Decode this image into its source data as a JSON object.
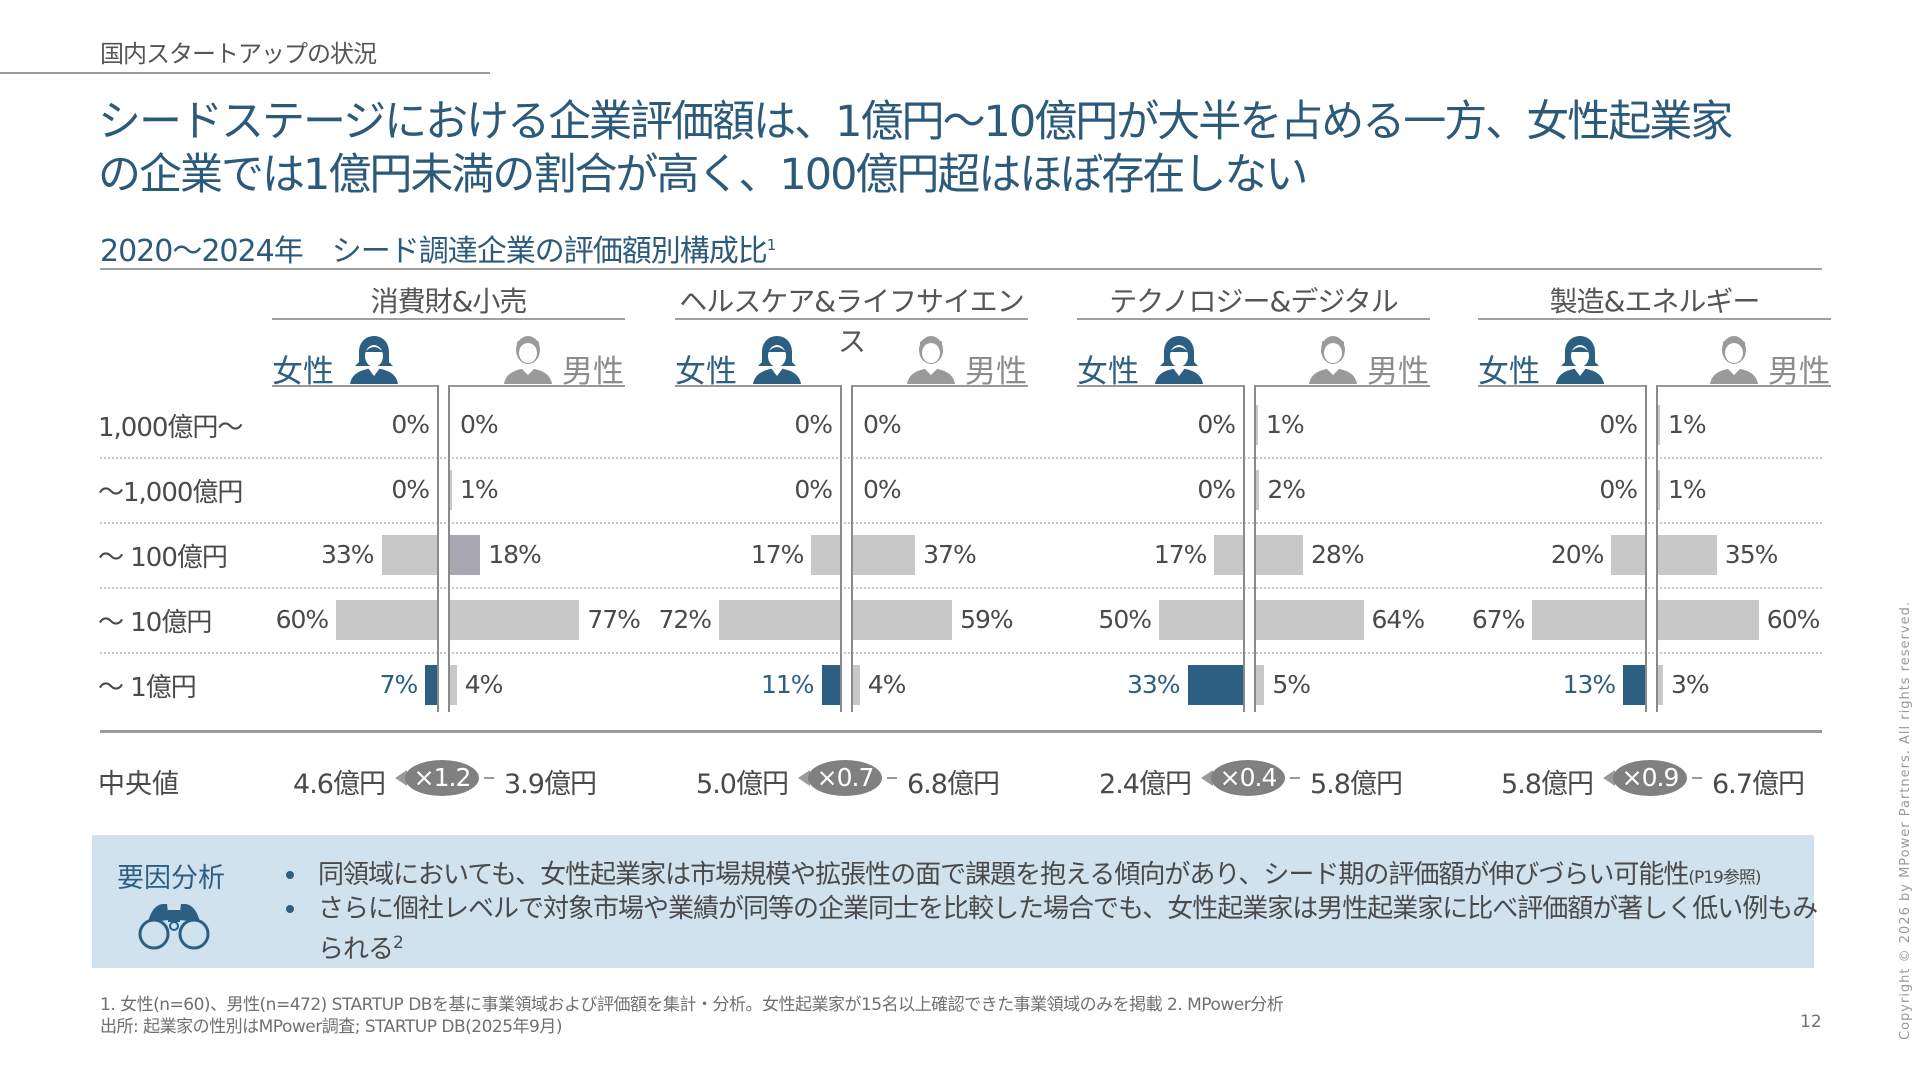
{
  "header": {
    "section": "国内スタートアップの状況",
    "title_line1": "シードステージにおける企業評価額は、1億円～10億円が大半を占める一方、女性起業家",
    "title_line2": "の企業では1億円未満の割合が高く、100億円超はほぼ存在しない",
    "subtitle": "2020～2024年　シード調達企業の評価額別構成比",
    "subtitle_sup": "1"
  },
  "legend": {
    "female": "女性",
    "male": "男性",
    "female_icon": "female-person-icon",
    "male_icon": "male-person-icon"
  },
  "colors": {
    "female_highlight": "#2c5f82",
    "bar_gray": "#c8c8c8",
    "bar_purple_gray": "#a8a6b0",
    "accent_text": "#2c5a7a"
  },
  "chart_data": {
    "type": "bar",
    "title": "2020～2024年 シード調達企業の評価額別構成比",
    "orientation": "horizontal-butterfly",
    "categories": [
      "1,000億円～",
      "～1,000億円",
      "～ 100億円",
      "～ 10億円",
      "～ 1億円"
    ],
    "unit": "%",
    "panels": [
      {
        "name": "消費財&小売",
        "series": [
          {
            "name": "女性",
            "values": [
              0,
              0,
              33,
              60,
              7
            ]
          },
          {
            "name": "男性",
            "values": [
              0,
              1,
              18,
              77,
              4
            ]
          }
        ],
        "labels_female": [
          "0%",
          "0%",
          "33%",
          "60%",
          "7%"
        ],
        "labels_male": [
          "0%",
          "1%",
          "18%",
          "77%",
          "4%"
        ],
        "median_female": "4.6億円",
        "median_male": "3.9億円",
        "ratio": "×1.2"
      },
      {
        "name": "ヘルスケア&ライフサイエンス",
        "series": [
          {
            "name": "女性",
            "values": [
              0,
              0,
              17,
              72,
              11
            ]
          },
          {
            "name": "男性",
            "values": [
              0,
              0,
              37,
              59,
              4
            ]
          }
        ],
        "labels_female": [
          "0%",
          "0%",
          "17%",
          "72%",
          "11%"
        ],
        "labels_male": [
          "0%",
          "0%",
          "37%",
          "59%",
          "4%"
        ],
        "median_female": "5.0億円",
        "median_male": "6.8億円",
        "ratio": "×0.7"
      },
      {
        "name": "テクノロジー&デジタル",
        "series": [
          {
            "name": "女性",
            "values": [
              0,
              0,
              17,
              50,
              33
            ]
          },
          {
            "name": "男性",
            "values": [
              1,
              2,
              28,
              64,
              5
            ]
          }
        ],
        "labels_female": [
          "0%",
          "0%",
          "17%",
          "50%",
          "33%"
        ],
        "labels_male": [
          "1%",
          "2%",
          "28%",
          "64%",
          "5%"
        ],
        "median_female": "2.4億円",
        "median_male": "5.8億円",
        "ratio": "×0.4"
      },
      {
        "name": "製造&エネルギー",
        "series": [
          {
            "name": "女性",
            "values": [
              0,
              0,
              20,
              67,
              13
            ]
          },
          {
            "name": "男性",
            "values": [
              1,
              1,
              35,
              60,
              3
            ]
          }
        ],
        "labels_female": [
          "0%",
          "0%",
          "20%",
          "67%",
          "13%"
        ],
        "labels_male": [
          "1%",
          "1%",
          "35%",
          "60%",
          "3%"
        ],
        "median_female": "5.8億円",
        "median_male": "6.7億円",
        "ratio": "×0.9"
      }
    ],
    "median_label": "中央値",
    "grid": true
  },
  "analysis": {
    "label": "要因分析",
    "icon": "binoculars-icon",
    "bullets": [
      {
        "text": "同領域においても、女性起業家は市場規模や拡張性の面で課題を抱える傾向があり、シード期の評価額が伸びづらい可能性",
        "note": "(P19参照)"
      },
      {
        "text": "さらに個社レベルで対象市場や業績が同等の企業同士を比較した場合でも、女性起業家は男性起業家に比べ評価額が著しく低い例もみられる",
        "sup": "2"
      }
    ]
  },
  "footer": {
    "note1": "1. 女性(n=60)、男性(n=472) STARTUP DBを基に事業領域および評価額を集計・分析。女性起業家が15名以上確認できた事業領域のみを掲載 2. MPower分析",
    "note2": "出所: 起業家の性別はMPower調査; STARTUP DB(2025年9月)",
    "page": "12",
    "copyright": "Copyright © 2026 by MPower Partners. All rights reserved."
  }
}
